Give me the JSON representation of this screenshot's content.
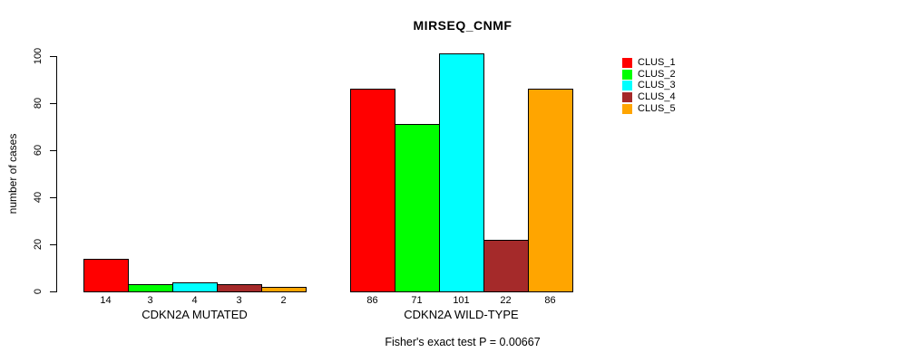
{
  "chart_data": {
    "type": "bar",
    "title": "MIRSEQ_CNMF",
    "ylabel": "number of cases",
    "xlabel": "",
    "ylim": [
      0,
      100
    ],
    "yticks": [
      0,
      20,
      40,
      60,
      80,
      100
    ],
    "grid": false,
    "legend_position": "right",
    "categories": [
      "CDKN2A MUTATED",
      "CDKN2A WILD-TYPE"
    ],
    "series": [
      {
        "name": "CLUS_1",
        "color": "#FF0000",
        "values": [
          14,
          86
        ]
      },
      {
        "name": "CLUS_2",
        "color": "#00FF00",
        "values": [
          3,
          71
        ]
      },
      {
        "name": "CLUS_3",
        "color": "#00FFFF",
        "values": [
          4,
          101
        ]
      },
      {
        "name": "CLUS_4",
        "color": "#A52A2A",
        "values": [
          3,
          22
        ]
      },
      {
        "name": "CLUS_5",
        "color": "#FFA500",
        "values": [
          2,
          86
        ]
      }
    ],
    "bar_labels": [
      [
        "14",
        "3",
        "4",
        "3",
        "2"
      ],
      [
        "86",
        "71",
        "101",
        "22",
        "86"
      ]
    ],
    "note": "Fisher's exact test P = 0.00667"
  }
}
